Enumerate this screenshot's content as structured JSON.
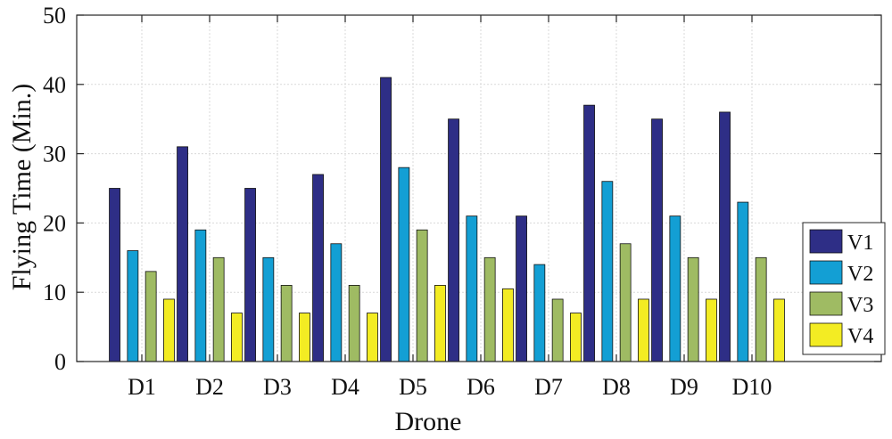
{
  "chart_data": {
    "type": "bar",
    "title": "",
    "xlabel": "Drone",
    "ylabel": "Flying Time (Min.)",
    "ylim": [
      0,
      50
    ],
    "yticks": [
      0,
      10,
      20,
      30,
      40,
      50
    ],
    "grid": true,
    "legend_position": "bottom-right",
    "categories": [
      "D1",
      "D2",
      "D3",
      "D4",
      "D5",
      "D6",
      "D7",
      "D8",
      "D9",
      "D10"
    ],
    "series": [
      {
        "name": "V1",
        "color": "#2e2e86",
        "values": [
          25,
          31,
          25,
          27,
          41,
          35,
          21,
          37,
          35,
          36
        ]
      },
      {
        "name": "V2",
        "color": "#139fd4",
        "values": [
          16,
          19,
          15,
          17,
          28,
          21,
          14,
          26,
          21,
          23
        ]
      },
      {
        "name": "V3",
        "color": "#9fbb63",
        "values": [
          13,
          15,
          11,
          11,
          19,
          15,
          9,
          17,
          15,
          15
        ]
      },
      {
        "name": "V4",
        "color": "#f3ec23",
        "values": [
          9,
          7,
          7,
          7,
          11,
          10.5,
          7,
          9,
          9,
          9
        ]
      }
    ]
  }
}
